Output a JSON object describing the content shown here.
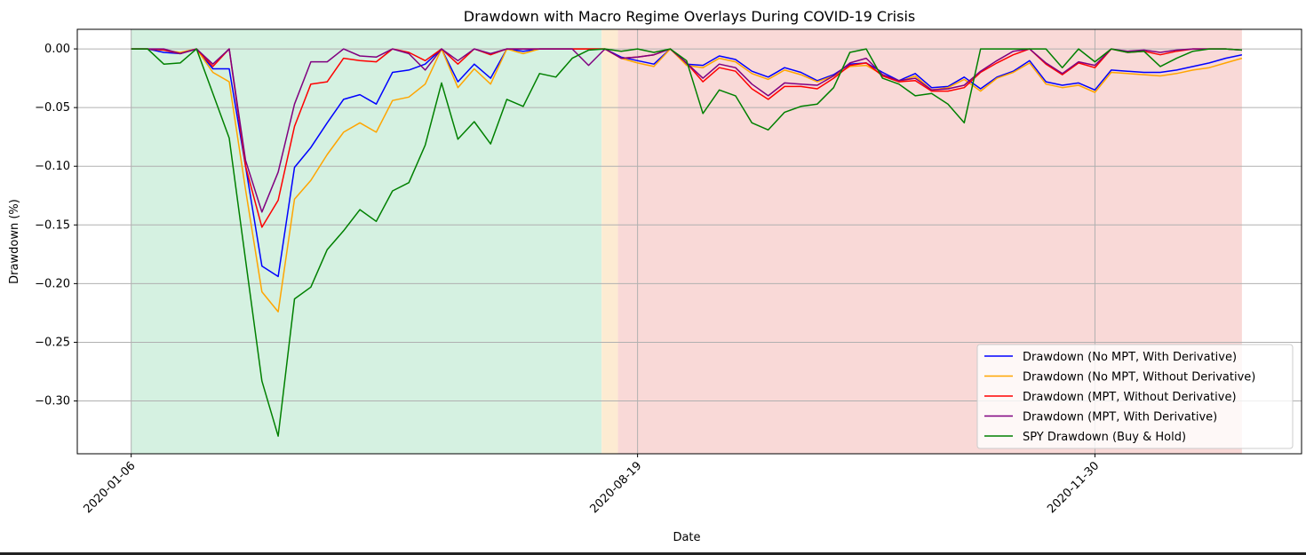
{
  "chart_data": {
    "type": "line",
    "title": "Drawdown with Macro Regime Overlays During COVID-19 Crisis",
    "xlabel": "Date",
    "ylabel": "Drawdown (%)",
    "ylim": [
      -0.345,
      0.0167
    ],
    "xlim": [
      -3.3,
      71.65
    ],
    "yticks": [
      0.0,
      -0.05,
      -0.1,
      -0.15,
      -0.2,
      -0.25,
      -0.3
    ],
    "ytick_labels": [
      "0.00",
      "−0.05",
      "−0.10",
      "−0.15",
      "−0.20",
      "−0.25",
      "−0.30"
    ],
    "xticks": [
      {
        "index": 0,
        "label": "2020-01-06"
      },
      {
        "index": 31,
        "label": "2020-08-19"
      },
      {
        "index": 59,
        "label": "2020-11-30"
      }
    ],
    "grid": true,
    "legend_position": "lower-right",
    "regimes": [
      {
        "start": 0,
        "end": 28.8,
        "color": "#d5f1e1"
      },
      {
        "start": 28.8,
        "end": 29.8,
        "color": "#fdebd2"
      },
      {
        "start": 29.8,
        "end": 68,
        "color": "#f9d9d7"
      }
    ],
    "series": [
      {
        "name": "Drawdown (No MPT, With Derivative)",
        "color": "#0000ff",
        "values": [
          0,
          0,
          -0.003,
          -0.004,
          0,
          -0.017,
          -0.017,
          -0.1,
          -0.185,
          -0.194,
          -0.101,
          -0.084,
          -0.063,
          -0.043,
          -0.039,
          -0.047,
          -0.02,
          -0.018,
          -0.013,
          0,
          -0.028,
          -0.013,
          -0.025,
          0,
          -0.002,
          0,
          0,
          0,
          0,
          0,
          -0.007,
          -0.01,
          -0.013,
          0,
          -0.013,
          -0.014,
          -0.006,
          -0.009,
          -0.019,
          -0.024,
          -0.016,
          -0.02,
          -0.027,
          -0.022,
          -0.013,
          -0.012,
          -0.02,
          -0.027,
          -0.021,
          -0.033,
          -0.032,
          -0.024,
          -0.034,
          -0.024,
          -0.019,
          -0.01,
          -0.028,
          -0.031,
          -0.029,
          -0.035,
          -0.018,
          -0.019,
          -0.02,
          -0.02,
          -0.018,
          -0.015,
          -0.012,
          -0.008,
          -0.005
        ]
      },
      {
        "name": "Drawdown (No MPT, Without Derivative)",
        "color": "#ffa500",
        "values": [
          0,
          0,
          -0.001,
          -0.003,
          0,
          -0.02,
          -0.028,
          -0.12,
          -0.207,
          -0.224,
          -0.128,
          -0.112,
          -0.09,
          -0.071,
          -0.063,
          -0.071,
          -0.044,
          -0.041,
          -0.03,
          0,
          -0.033,
          -0.017,
          -0.03,
          0,
          -0.004,
          0,
          0,
          0,
          0,
          0,
          -0.008,
          -0.012,
          -0.015,
          0,
          -0.014,
          -0.016,
          -0.008,
          -0.011,
          -0.021,
          -0.026,
          -0.018,
          -0.022,
          -0.028,
          -0.023,
          -0.015,
          -0.014,
          -0.022,
          -0.028,
          -0.023,
          -0.035,
          -0.033,
          -0.026,
          -0.036,
          -0.025,
          -0.02,
          -0.012,
          -0.03,
          -0.033,
          -0.031,
          -0.037,
          -0.02,
          -0.021,
          -0.022,
          -0.023,
          -0.021,
          -0.018,
          -0.016,
          -0.012,
          -0.008
        ]
      },
      {
        "name": "Drawdown (MPT, Without Derivative)",
        "color": "#ff0000",
        "values": [
          0,
          0,
          -0.001,
          -0.004,
          0,
          -0.015,
          0,
          -0.1,
          -0.152,
          -0.129,
          -0.066,
          -0.03,
          -0.028,
          -0.008,
          -0.01,
          -0.011,
          0,
          -0.003,
          -0.01,
          0,
          -0.013,
          0,
          -0.005,
          0,
          0,
          0,
          0,
          0,
          0,
          0,
          -0.008,
          -0.007,
          -0.005,
          0,
          -0.012,
          -0.028,
          -0.016,
          -0.019,
          -0.034,
          -0.043,
          -0.032,
          -0.032,
          -0.034,
          -0.025,
          -0.014,
          -0.012,
          -0.023,
          -0.028,
          -0.027,
          -0.036,
          -0.036,
          -0.033,
          -0.02,
          -0.012,
          -0.005,
          0,
          -0.013,
          -0.022,
          -0.012,
          -0.016,
          0,
          -0.003,
          -0.002,
          -0.005,
          -0.002,
          0,
          0,
          0,
          -0.001
        ]
      },
      {
        "name": "Drawdown (MPT, With Derivative)",
        "color": "#800080",
        "values": [
          0,
          0,
          0,
          -0.004,
          0,
          -0.013,
          0,
          -0.095,
          -0.139,
          -0.105,
          -0.047,
          -0.011,
          -0.011,
          0,
          -0.006,
          -0.007,
          0,
          -0.004,
          -0.018,
          0,
          -0.01,
          0,
          -0.004,
          0,
          0,
          0,
          0,
          0,
          -0.014,
          0,
          -0.008,
          -0.007,
          -0.005,
          0,
          -0.012,
          -0.025,
          -0.013,
          -0.016,
          -0.03,
          -0.04,
          -0.029,
          -0.03,
          -0.031,
          -0.023,
          -0.012,
          -0.008,
          -0.022,
          -0.027,
          -0.025,
          -0.035,
          -0.034,
          -0.031,
          -0.019,
          -0.01,
          -0.002,
          0,
          -0.012,
          -0.021,
          -0.011,
          -0.014,
          0,
          -0.002,
          -0.001,
          -0.003,
          -0.001,
          0,
          0,
          0,
          -0.001
        ]
      },
      {
        "name": "SPY Drawdown (Buy & Hold)",
        "color": "#008000",
        "values": [
          0,
          0,
          -0.013,
          -0.012,
          0,
          -0.038,
          -0.076,
          -0.18,
          -0.283,
          -0.33,
          -0.213,
          -0.203,
          -0.171,
          -0.155,
          -0.137,
          -0.147,
          -0.121,
          -0.114,
          -0.082,
          -0.029,
          -0.077,
          -0.062,
          -0.081,
          -0.043,
          -0.049,
          -0.021,
          -0.024,
          -0.008,
          -0.001,
          0,
          -0.002,
          0,
          -0.003,
          0,
          -0.01,
          -0.055,
          -0.035,
          -0.04,
          -0.063,
          -0.069,
          -0.054,
          -0.049,
          -0.047,
          -0.033,
          -0.003,
          0,
          -0.025,
          -0.03,
          -0.04,
          -0.038,
          -0.047,
          -0.063,
          0,
          0,
          0,
          0,
          0,
          -0.016,
          0,
          -0.011,
          0,
          -0.003,
          -0.002,
          -0.015,
          -0.008,
          -0.002,
          0,
          0,
          -0.001
        ]
      }
    ]
  }
}
